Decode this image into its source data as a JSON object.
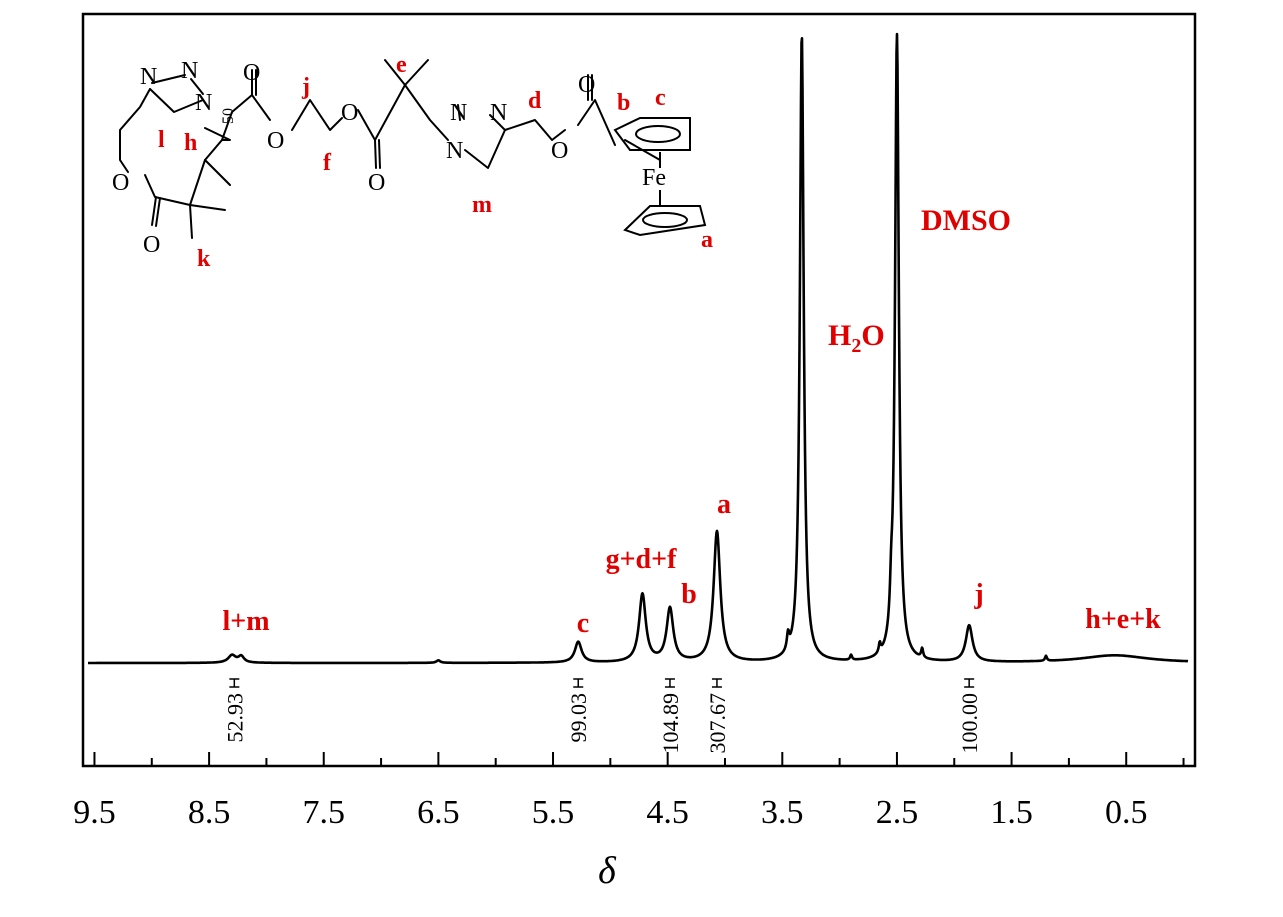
{
  "chart_data": {
    "type": "line",
    "xlabel": "δ",
    "x_reversed": true,
    "xlim": [
      9.6,
      -0.1
    ],
    "x_ticks": [
      9.5,
      8.5,
      7.5,
      6.5,
      5.5,
      4.5,
      3.5,
      2.5,
      1.5,
      0.5
    ],
    "x_tick_labels": [
      "9.5",
      "8.5",
      "7.5",
      "6.5",
      "5.5",
      "4.5",
      "3.5",
      "2.5",
      "1.5",
      "0.5"
    ],
    "peaks": [
      {
        "label": "l+m",
        "ppm": 8.3,
        "height": 0.012
      },
      {
        "label": "c",
        "ppm": 5.28,
        "height": 0.033
      },
      {
        "label": "g+d+f",
        "ppm": 4.72,
        "height": 0.108
      },
      {
        "label": "b",
        "ppm": 4.48,
        "height": 0.085
      },
      {
        "label": "a",
        "ppm": 4.07,
        "height": 0.208
      },
      {
        "label": "H2O",
        "ppm": 3.33,
        "height": 1.0
      },
      {
        "label": "DMSO",
        "ppm": 2.5,
        "height": 1.0
      },
      {
        "label": "j",
        "ppm": 1.87,
        "height": 0.058
      },
      {
        "label": "h+e+k",
        "ppm": 0.6,
        "height": 0.012
      }
    ],
    "labels": {
      "lm": "l+m",
      "c": "c",
      "gdf": "g+d+f",
      "b": "b",
      "a": "a",
      "h2o_main": "H",
      "h2o_sub": "2",
      "h2o_end": "O",
      "dmso": "DMSO",
      "j": "j",
      "hek": "h+e+k"
    },
    "integrals": [
      {
        "ppm": 8.28,
        "value": "52.93"
      },
      {
        "ppm": 5.28,
        "value": "99.03"
      },
      {
        "ppm": 4.48,
        "value": "104.89"
      },
      {
        "ppm": 4.07,
        "value": "307.67"
      },
      {
        "ppm": 1.87,
        "value": "100.00"
      }
    ]
  },
  "structure": {
    "atoms": {
      "n1": "N",
      "n2": "N",
      "n3": "N",
      "o1": "O",
      "o2": "O",
      "o3": "O",
      "o4": "O",
      "o5": "O",
      "o6": "O",
      "n4": "N",
      "n5": "N",
      "n6": "N",
      "o7": "O",
      "o8": "O",
      "o9": "O",
      "fe": "Fe",
      "sub50": "50"
    },
    "labels": {
      "l": "l",
      "h": "h",
      "j": "j",
      "f": "f",
      "e": "e",
      "d": "d",
      "b": "b",
      "c": "c",
      "m": "m",
      "k": "k",
      "a": "a"
    }
  }
}
